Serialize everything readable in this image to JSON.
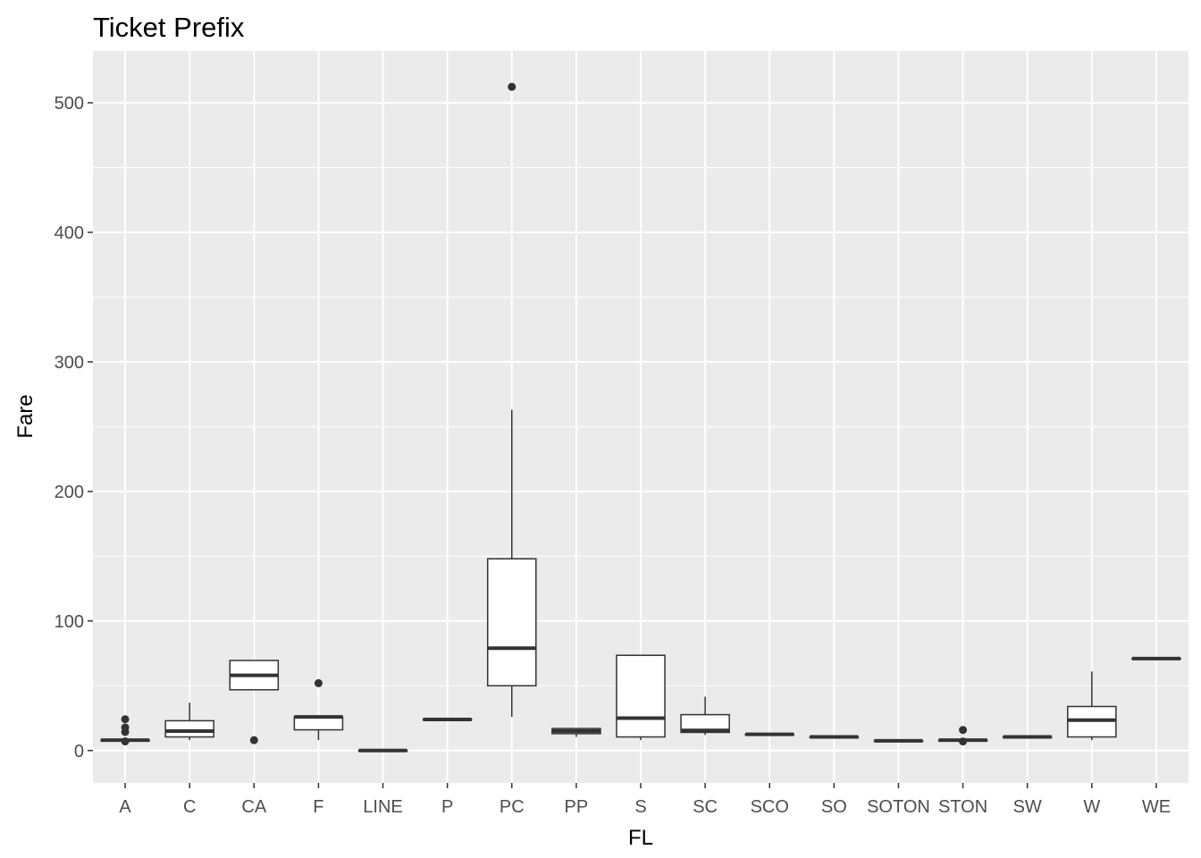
{
  "chart_data": {
    "type": "boxplot",
    "title": "Ticket Prefix",
    "xlabel": "FL",
    "ylabel": "Fare",
    "ylim": [
      -25,
      540
    ],
    "yticks": [
      0,
      100,
      200,
      300,
      400,
      500
    ],
    "yminor": [
      50,
      150,
      250,
      350,
      450
    ],
    "grid": true,
    "legend": "none",
    "colors": {
      "panel": "#ebebeb",
      "box_fill": "#ffffff",
      "line": "#333333",
      "tick_text": "#4d4d4d"
    },
    "categories": [
      "A",
      "C",
      "CA",
      "F",
      "LINE",
      "P",
      "PC",
      "PP",
      "S",
      "SC",
      "SCO",
      "SO",
      "SOTON",
      "STON",
      "SW",
      "W",
      "WE"
    ],
    "boxes": [
      {
        "category": "A",
        "lower": 7.05,
        "q1": 7.55,
        "median": 8.05,
        "q3": 8.05,
        "upper": 8.05,
        "outliers": [
          24.15,
          17.8,
          14.4,
          7.05
        ]
      },
      {
        "category": "C",
        "lower": 8.05,
        "q1": 10.5,
        "median": 15.0,
        "q3": 23.0,
        "upper": 37.0,
        "outliers": []
      },
      {
        "category": "CA",
        "lower": 46.9,
        "q1": 46.9,
        "median": 58.0,
        "q3": 69.55,
        "upper": 69.55,
        "outliers": [
          8.0
        ]
      },
      {
        "category": "F",
        "lower": 8.0,
        "q1": 16.0,
        "median": 26.0,
        "q3": 26.0,
        "upper": 26.0,
        "outliers": [
          52.0
        ]
      },
      {
        "category": "LINE",
        "lower": 0,
        "q1": 0,
        "median": 0,
        "q3": 0,
        "upper": 0,
        "outliers": []
      },
      {
        "category": "P",
        "lower": 24.0,
        "q1": 24.0,
        "median": 24.0,
        "q3": 24.0,
        "upper": 24.0,
        "outliers": []
      },
      {
        "category": "PC",
        "lower": 26.0,
        "q1": 50.0,
        "median": 79.0,
        "q3": 148.0,
        "upper": 263.0,
        "outliers": [
          512.3
        ]
      },
      {
        "category": "PP",
        "lower": 10.5,
        "q1": 13.0,
        "median": 15.0,
        "q3": 17.0,
        "upper": 17.0,
        "outliers": []
      },
      {
        "category": "S",
        "lower": 8.0,
        "q1": 10.5,
        "median": 25.0,
        "q3": 73.5,
        "upper": 73.5,
        "outliers": []
      },
      {
        "category": "SC",
        "lower": 12.0,
        "q1": 14.0,
        "median": 15.5,
        "q3": 27.7,
        "upper": 41.5,
        "outliers": []
      },
      {
        "category": "SCO",
        "lower": 12.5,
        "q1": 12.5,
        "median": 12.5,
        "q3": 12.5,
        "upper": 12.5,
        "outliers": []
      },
      {
        "category": "SO",
        "lower": 10.5,
        "q1": 10.5,
        "median": 10.5,
        "q3": 10.5,
        "upper": 10.5,
        "outliers": []
      },
      {
        "category": "SOTON",
        "lower": 7.5,
        "q1": 7.5,
        "median": 7.5,
        "q3": 7.5,
        "upper": 7.5,
        "outliers": []
      },
      {
        "category": "STON",
        "lower": 7.0,
        "q1": 7.5,
        "median": 8.0,
        "q3": 8.0,
        "upper": 8.0,
        "outliers": [
          15.9,
          7.0
        ]
      },
      {
        "category": "SW",
        "lower": 10.5,
        "q1": 10.5,
        "median": 10.5,
        "q3": 10.5,
        "upper": 10.5,
        "outliers": []
      },
      {
        "category": "W",
        "lower": 8.0,
        "q1": 10.5,
        "median": 23.5,
        "q3": 34.0,
        "upper": 61.0,
        "outliers": []
      },
      {
        "category": "WE",
        "lower": 71.0,
        "q1": 71.0,
        "median": 71.0,
        "q3": 71.0,
        "upper": 71.0,
        "outliers": []
      }
    ]
  }
}
